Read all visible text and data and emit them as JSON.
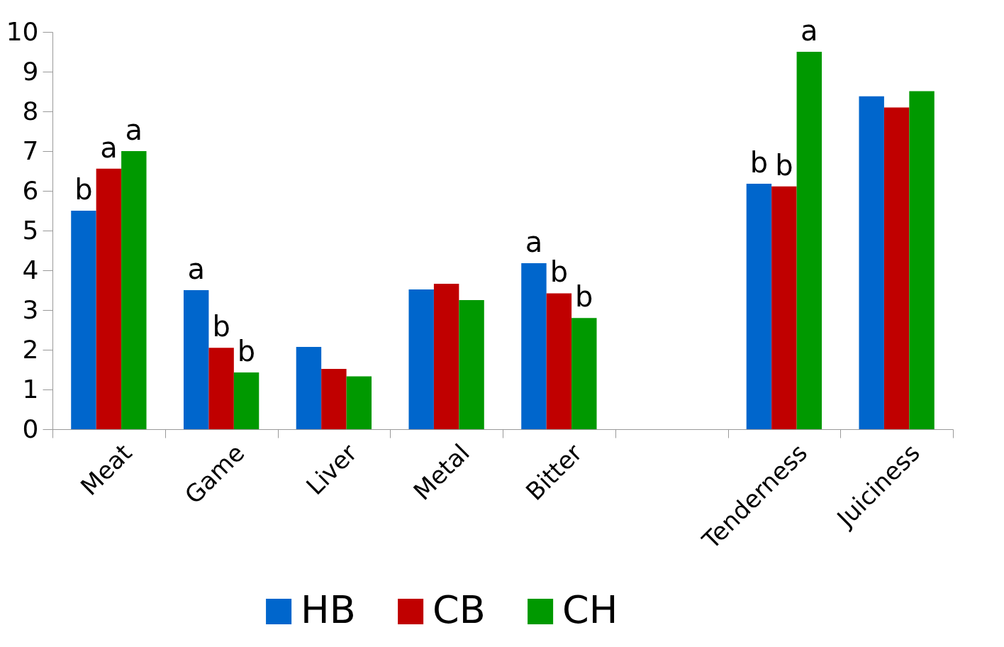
{
  "chart_data": {
    "type": "bar",
    "categories": [
      "Meat",
      "Game",
      "Liver",
      "Metal",
      "Bitter",
      null,
      "Tenderness",
      "Juiciness"
    ],
    "series": [
      {
        "name": "HB",
        "color": "#0066cc",
        "values": [
          5.5,
          3.5,
          2.07,
          3.52,
          4.18,
          null,
          6.18,
          8.38
        ],
        "value_labels": [
          "b",
          "a",
          null,
          null,
          "a",
          null,
          "b",
          null
        ]
      },
      {
        "name": "CB",
        "color": "#c00000",
        "values": [
          6.56,
          2.05,
          1.52,
          3.66,
          3.42,
          null,
          6.11,
          8.1
        ],
        "value_labels": [
          "a",
          "b",
          null,
          null,
          "b",
          null,
          "b",
          null
        ]
      },
      {
        "name": "CH",
        "color": "#009900",
        "values": [
          7.0,
          1.43,
          1.33,
          3.25,
          2.8,
          null,
          9.5,
          8.51
        ],
        "value_labels": [
          "a",
          "b",
          null,
          null,
          "b",
          null,
          "a",
          null
        ]
      }
    ],
    "ylim": [
      0,
      10
    ],
    "yticks": [
      0,
      1,
      2,
      3,
      4,
      5,
      6,
      7,
      8,
      9,
      10
    ],
    "grid": false,
    "legend": "bottom"
  }
}
